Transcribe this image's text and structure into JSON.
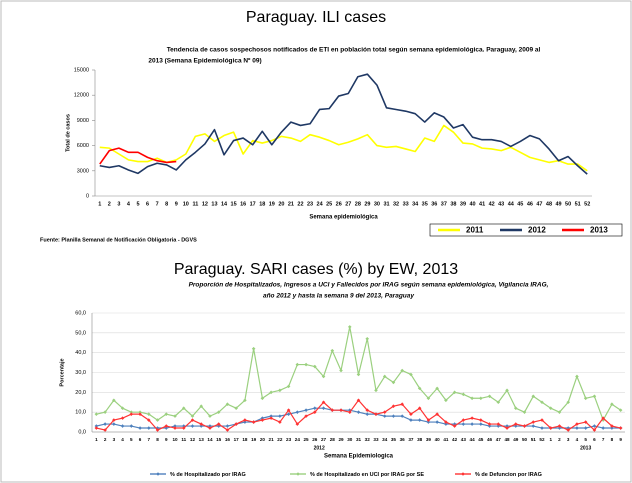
{
  "chart_data": [
    {
      "type": "line",
      "panel_title": "Paraguay. ILI cases",
      "title": "Tendencia de casos sospechosos notificados de ETI en población total según semana epidemiológica. Paraguay, 2009 al",
      "subtitle": "2013 (Semana Epidemiológica Nº 09)",
      "x_label": "Semana epidemiológica",
      "y_label": "Total de casos",
      "source": "Fuente: Planilla Semanal de Notificación Obligatoria - DGVS",
      "categories": [
        "1",
        "2",
        "3",
        "4",
        "5",
        "6",
        "7",
        "8",
        "9",
        "10",
        "11",
        "12",
        "13",
        "14",
        "15",
        "16",
        "17",
        "18",
        "19",
        "20",
        "21",
        "22",
        "23",
        "24",
        "25",
        "26",
        "27",
        "28",
        "29",
        "30",
        "31",
        "32",
        "33",
        "34",
        "35",
        "36",
        "37",
        "38",
        "39",
        "40",
        "41",
        "42",
        "43",
        "44",
        "45",
        "46",
        "47",
        "48",
        "49",
        "50",
        "51",
        "52"
      ],
      "ylim": [
        0,
        15000
      ],
      "yticks": [
        0,
        3000,
        6000,
        9000,
        12000,
        15000
      ],
      "grid": false,
      "legend": "bottom-right",
      "series": [
        {
          "name": "2011",
          "color": "#ffff00",
          "values": [
            5800,
            5700,
            5000,
            4300,
            4100,
            4100,
            4500,
            4000,
            4300,
            5000,
            7100,
            7400,
            6500,
            7200,
            7600,
            5000,
            6600,
            6300,
            6600,
            7100,
            6900,
            6500,
            7300,
            7000,
            6600,
            6100,
            6400,
            6800,
            7300,
            6000,
            5800,
            5900,
            5600,
            5300,
            6900,
            6500,
            8400,
            7600,
            6300,
            6200,
            5700,
            5600,
            5400,
            5800,
            5200,
            4600,
            4300,
            4000,
            4200,
            3800,
            3800,
            3000
          ]
        },
        {
          "name": "2012",
          "color": "#1f3864",
          "values": [
            3600,
            3400,
            3600,
            3100,
            2700,
            3500,
            3900,
            3700,
            3100,
            4300,
            5200,
            6200,
            7900,
            4900,
            6600,
            6900,
            6100,
            7700,
            6100,
            7600,
            8800,
            8400,
            8600,
            10300,
            10400,
            11900,
            12200,
            14200,
            14500,
            13200,
            10500,
            10300,
            10100,
            9800,
            8800,
            9900,
            9400,
            8100,
            8500,
            7000,
            6700,
            6700,
            6500,
            5900,
            6500,
            7200,
            6800,
            5600,
            4200,
            4700,
            3600,
            2600
          ]
        },
        {
          "name": "2013",
          "color": "#ff0000",
          "values": [
            3800,
            5400,
            5700,
            5200,
            5200,
            4600,
            4200,
            4000,
            4100,
            null,
            null,
            null,
            null,
            null,
            null,
            null,
            null,
            null,
            null,
            null,
            null,
            null,
            null,
            null,
            null,
            null,
            null,
            null,
            null,
            null,
            null,
            null,
            null,
            null,
            null,
            null,
            null,
            null,
            null,
            null,
            null,
            null,
            null,
            null,
            null,
            null,
            null,
            null,
            null,
            null,
            null,
            null
          ]
        }
      ]
    },
    {
      "type": "line",
      "panel_title": "Paraguay. SARI cases (%)  by EW, 2013",
      "title": "Proporción de Hospitalizados, Ingresos a UCI y Fallecidos por IRAG según semana epidemiológica, Vigilancia IRAG,",
      "subtitle": "año 2012 y hasta la semana 9 del 2013, Paraguay",
      "x_label": "Semana Epidemiologica",
      "y_label": "Porcentaje",
      "groups": [
        {
          "label": "2012",
          "categories": [
            "1",
            "2",
            "3",
            "4",
            "5",
            "6",
            "7",
            "8",
            "9",
            "10",
            "11",
            "12",
            "13",
            "14",
            "15",
            "16",
            "17",
            "18",
            "19",
            "20",
            "21",
            "22",
            "23",
            "24",
            "25",
            "26",
            "27",
            "28",
            "29",
            "30",
            "31",
            "32",
            "33",
            "34",
            "35",
            "36",
            "37",
            "38",
            "39",
            "40",
            "41",
            "42",
            "43",
            "44",
            "45",
            "46",
            "47",
            "48",
            "49",
            "50",
            "51",
            "52"
          ]
        },
        {
          "label": "2013",
          "categories": [
            "1",
            "2",
            "3",
            "4",
            "5",
            "6",
            "7",
            "8",
            "9"
          ]
        }
      ],
      "ylim": [
        0,
        60
      ],
      "yticks": [
        {
          "value": 0,
          "label": "0,0"
        },
        {
          "value": 10,
          "label": "10,0"
        },
        {
          "value": 20,
          "label": "20,0"
        },
        {
          "value": 30,
          "label": "30,0"
        },
        {
          "value": 40,
          "label": "40,0"
        },
        {
          "value": 50,
          "label": "50,0"
        },
        {
          "value": 60,
          "label": "60,0"
        }
      ],
      "grid": true,
      "legend": "bottom",
      "series": [
        {
          "name": "% de Hospitalizado por IRAG",
          "color": "#4f81bd",
          "values": [
            3,
            4,
            4,
            3,
            3,
            2,
            2,
            2,
            2,
            3,
            3,
            3,
            3,
            3,
            3,
            3,
            4,
            5,
            5,
            7,
            8,
            8,
            9,
            10,
            11,
            12,
            12,
            11,
            11,
            11,
            10,
            9,
            9,
            8,
            8,
            8,
            6,
            6,
            5,
            5,
            4,
            4,
            4,
            4,
            4,
            3,
            3,
            3,
            3,
            3,
            3,
            2,
            2,
            2,
            2,
            2,
            2,
            3,
            2,
            2,
            2
          ]
        },
        {
          "name": "% de Hospitalizado en UCI por IRAG por SE",
          "color": "#9bd07f",
          "values": [
            9,
            10,
            16,
            12,
            10,
            10,
            9,
            6,
            9,
            8,
            12,
            8,
            13,
            8,
            10,
            14,
            12,
            16,
            42,
            17,
            20,
            21,
            23,
            34,
            34,
            33,
            28,
            41,
            31,
            53,
            29,
            47,
            21,
            28,
            25,
            31,
            29,
            22,
            17,
            22,
            16,
            20,
            19,
            17,
            17,
            18,
            15,
            21,
            12,
            10,
            18,
            15,
            12,
            10,
            15,
            28,
            17,
            18,
            6,
            14,
            11
          ]
        },
        {
          "name": "% de Defuncion por IRAG",
          "color": "#ff3333",
          "values": [
            2,
            1,
            6,
            7,
            9,
            9,
            6,
            1,
            3,
            2,
            2,
            6,
            4,
            2,
            4,
            1,
            4,
            6,
            5,
            6,
            7,
            5,
            11,
            4,
            8,
            10,
            15,
            11,
            11,
            10,
            16,
            11,
            9,
            10,
            13,
            14,
            9,
            12,
            6,
            9,
            5,
            3,
            6,
            7,
            6,
            4,
            4,
            2,
            4,
            3,
            5,
            6,
            2,
            3,
            1,
            4,
            5,
            1,
            7,
            3,
            2
          ]
        }
      ]
    }
  ]
}
